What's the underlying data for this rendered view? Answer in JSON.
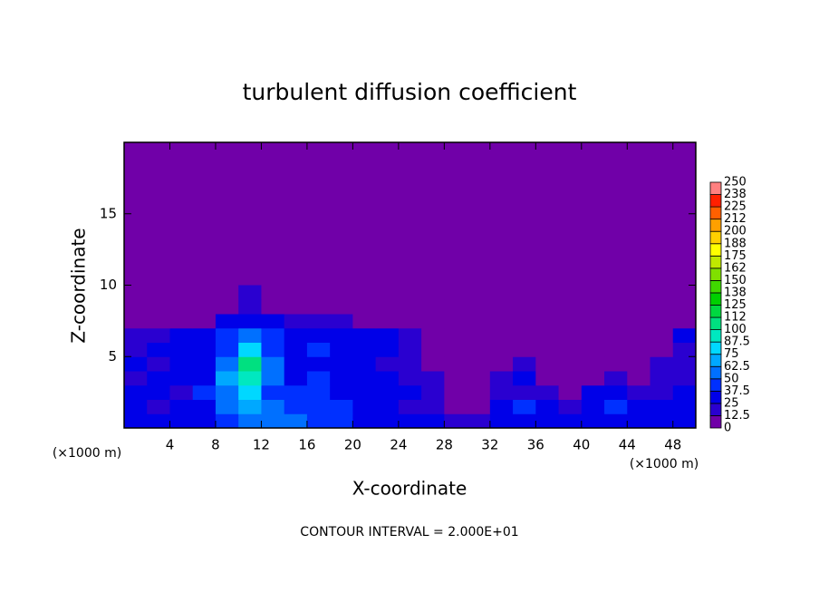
{
  "chart_data": {
    "type": "heatmap",
    "title": "turbulent diffusion coefficient",
    "x_label": "X-coordinate",
    "y_label": "Z-coordinate",
    "x_unit": "(×1000 m)",
    "footer": "CONTOUR INTERVAL = 2.000E+01",
    "xlim": [
      0,
      50
    ],
    "ylim": [
      0,
      20
    ],
    "xticks": [
      4,
      8,
      12,
      16,
      20,
      24,
      28,
      32,
      36,
      40,
      44,
      48
    ],
    "yticks": [
      5,
      10,
      15
    ],
    "x": [
      1,
      3,
      5,
      7,
      9,
      11,
      13,
      15,
      17,
      19,
      21,
      23,
      25,
      27,
      29,
      31,
      33,
      35,
      37,
      39,
      41,
      43,
      45,
      47,
      49
    ],
    "y": [
      0.5,
      1.5,
      2.5,
      3.5,
      4.5,
      5.5,
      6.5,
      7.5,
      8.5,
      9.5
    ],
    "z": [
      [
        30,
        25,
        30,
        30,
        40,
        60,
        55,
        50,
        45,
        40,
        35,
        30,
        30,
        25,
        20,
        15,
        35,
        30,
        25,
        30,
        25,
        30,
        30,
        25,
        25
      ],
      [
        30,
        20,
        30,
        35,
        55,
        70,
        50,
        45,
        45,
        40,
        35,
        30,
        20,
        20,
        10,
        10,
        30,
        40,
        30,
        20,
        35,
        40,
        25,
        30,
        30
      ],
      [
        25,
        30,
        20,
        40,
        60,
        80,
        45,
        40,
        45,
        30,
        30,
        30,
        25,
        20,
        5,
        5,
        15,
        20,
        15,
        10,
        35,
        30,
        15,
        20,
        25
      ],
      [
        20,
        30,
        35,
        30,
        70,
        90,
        50,
        35,
        40,
        25,
        30,
        25,
        20,
        15,
        0,
        5,
        20,
        30,
        10,
        5,
        10,
        15,
        5,
        20,
        15
      ],
      [
        25,
        20,
        30,
        35,
        60,
        110,
        60,
        30,
        35,
        30,
        25,
        20,
        15,
        10,
        0,
        0,
        10,
        15,
        5,
        0,
        5,
        0,
        0,
        15,
        20
      ],
      [
        20,
        25,
        25,
        30,
        45,
        80,
        45,
        35,
        40,
        35,
        30,
        30,
        20,
        5,
        0,
        0,
        0,
        0,
        0,
        0,
        0,
        0,
        5,
        10,
        20
      ],
      [
        20,
        20,
        25,
        25,
        40,
        50,
        40,
        30,
        30,
        25,
        25,
        25,
        20,
        0,
        0,
        0,
        0,
        0,
        0,
        0,
        0,
        0,
        0,
        5,
        25
      ],
      [
        0,
        0,
        0,
        10,
        30,
        30,
        25,
        20,
        15,
        15,
        10,
        5,
        0,
        0,
        0,
        0,
        0,
        0,
        0,
        0,
        0,
        0,
        0,
        0,
        0
      ],
      [
        0,
        0,
        0,
        0,
        5,
        20,
        0,
        0,
        0,
        0,
        0,
        0,
        0,
        0,
        0,
        0,
        0,
        0,
        0,
        0,
        0,
        0,
        0,
        0,
        0
      ],
      [
        0,
        0,
        0,
        0,
        0,
        15,
        0,
        0,
        0,
        0,
        0,
        0,
        0,
        0,
        0,
        0,
        0,
        0,
        0,
        0,
        0,
        0,
        0,
        0,
        0
      ]
    ],
    "colorbar": {
      "levels": [
        0,
        12.5,
        25,
        37.5,
        50,
        62.5,
        75,
        87.5,
        100,
        112,
        125,
        138,
        150,
        162,
        175,
        188,
        200,
        212,
        225,
        238,
        250
      ],
      "colors": [
        "#7000a8",
        "#2a00d0",
        "#0000e8",
        "#0030ff",
        "#0070ff",
        "#00a8ff",
        "#00d8ff",
        "#00e8c0",
        "#00e080",
        "#00d840",
        "#00d000",
        "#40d800",
        "#80e000",
        "#c0e800",
        "#ffff00",
        "#ffd000",
        "#ffa000",
        "#ff6000",
        "#ff2000",
        "#ff8080"
      ]
    }
  }
}
